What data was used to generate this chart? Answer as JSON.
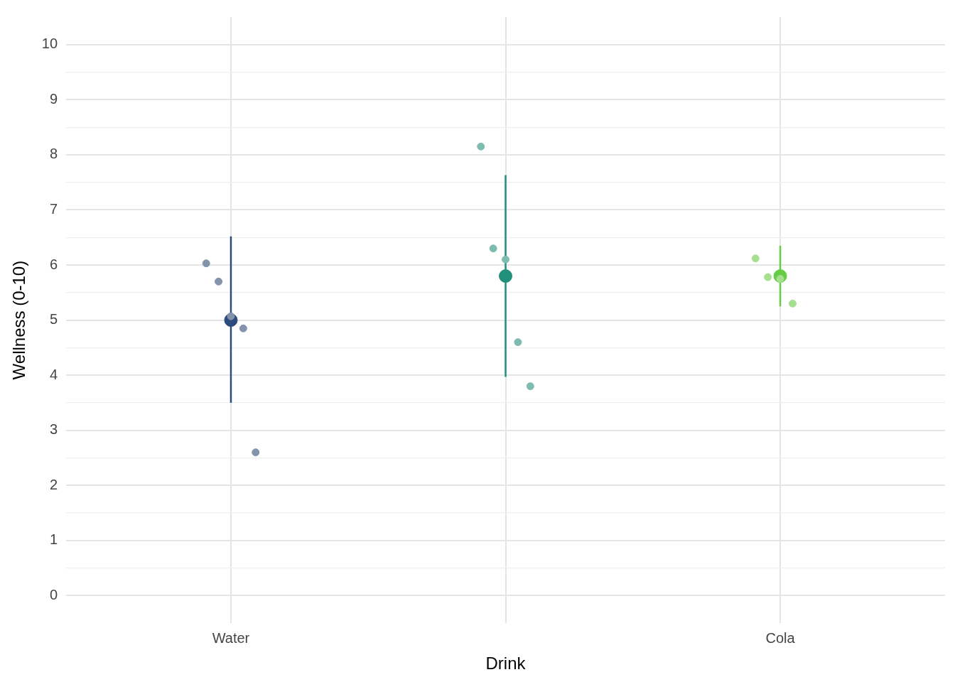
{
  "chart_data": {
    "type": "scatter",
    "xlabel": "Drink",
    "ylabel": "Wellness (0-10)",
    "categories": [
      "Water",
      null,
      "Cola"
    ],
    "ylim": [
      -0.5,
      10.5
    ],
    "yticks": [
      0,
      {
        "value": 0.5,
        "label": null
      },
      1,
      {
        "value": 1.5,
        "label": null
      },
      2,
      {
        "value": 2.5,
        "label": null
      },
      3,
      {
        "value": 3.5,
        "label": null
      },
      4,
      {
        "value": 4.5,
        "label": null
      },
      5,
      {
        "value": 5.5,
        "label": null
      },
      6,
      {
        "value": 6.5,
        "label": null
      },
      7,
      {
        "value": 7.5,
        "label": null
      },
      8,
      {
        "value": 8.5,
        "label": null
      },
      9,
      {
        "value": 9.5,
        "label": null
      },
      10
    ],
    "grid": true,
    "legend": false,
    "marker": "circle",
    "series": [
      {
        "colors": [
          "#8393ab",
          "#7fbcb0",
          "#a6df8f"
        ],
        "values": [
          6.03,
          8.15,
          6.12
        ]
      },
      {
        "colors": [
          "#8393ab",
          "#7fbcb0",
          "#a6df8f"
        ],
        "values": [
          5.7,
          6.3,
          5.78
        ]
      },
      {
        "colors": [
          "#8393ab",
          "#7fbcb0",
          "#a6df8f"
        ],
        "values": [
          5.07,
          6.1,
          5.75
        ]
      },
      {
        "colors": [
          "#8393ab",
          "#7fbcb0",
          "#a6df8f"
        ],
        "values": [
          4.85,
          4.6,
          5.3
        ]
      },
      {
        "colors": [
          "#8393ab",
          "#7fbcb0",
          "#a6df8f"
        ],
        "values": [
          2.6,
          3.8,
          null
        ]
      },
      {
        "colors": [
          "#2d4b7c",
          "#218f7a",
          "#66cc44"
        ],
        "values": [
          5.0,
          5.8,
          5.8
        ],
        "errors": [
          [
            3.5,
            6.52
          ],
          [
            3.97,
            7.63
          ],
          [
            5.25,
            6.35
          ]
        ]
      }
    ]
  }
}
